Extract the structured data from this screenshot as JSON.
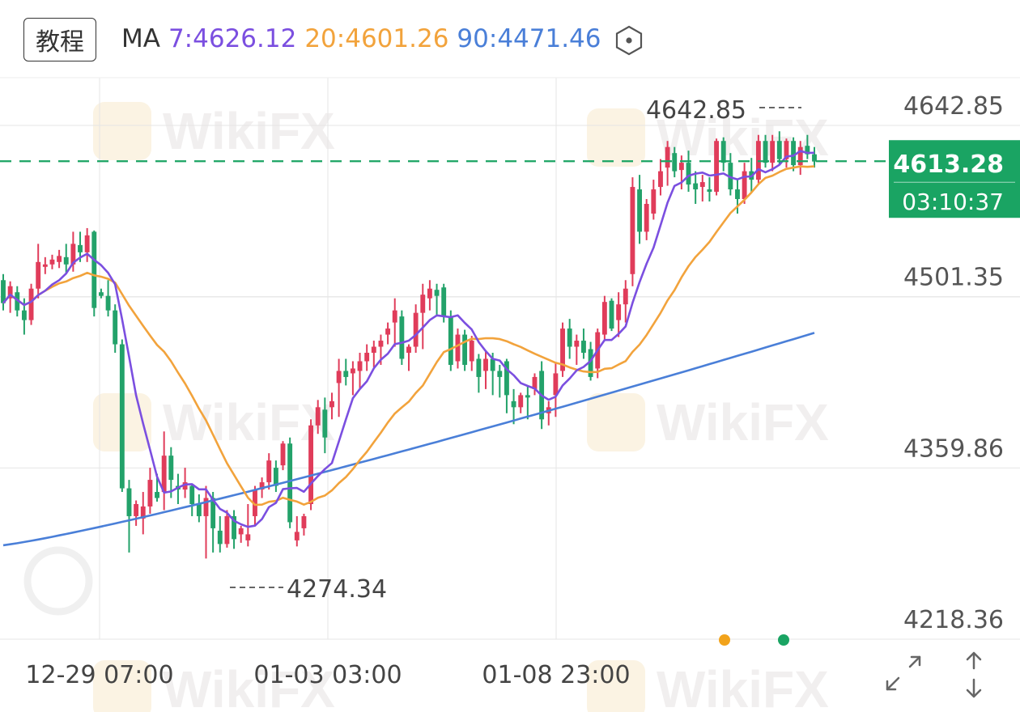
{
  "header": {
    "tutorial_label": "教程",
    "ma_label": "MA",
    "ma7": "7:4626.12",
    "ma20": "20:4601.26",
    "ma90": "90:4471.46",
    "settings_icon": "hexagon-dot-icon"
  },
  "chart_data": {
    "type": "candlestick",
    "y_axis_labels": [
      "4642.85",
      "4501.35",
      "4359.86",
      "4218.36"
    ],
    "y_ticks": [
      4642.85,
      4501.35,
      4359.86,
      4218.36
    ],
    "x_axis_labels": [
      "12-29 07:00",
      "01-03 03:00",
      "01-08 23:00"
    ],
    "current_price": "4613.28",
    "countdown": "03:10:37",
    "high_annotation": "4642.85",
    "low_annotation": "4274.34",
    "grid": true,
    "colors": {
      "up": "#e03c5a",
      "down": "#23a26a",
      "ma7": "#7b4fe0",
      "ma20": "#f2a33c",
      "ma90": "#4a7fd8",
      "current_price_bg": "#1aa463",
      "grid": "#e6e6e6"
    },
    "candles": [
      [
        4515,
        4520,
        4490,
        4496
      ],
      [
        4500,
        4514,
        4488,
        4510
      ],
      [
        4505,
        4510,
        4485,
        4490
      ],
      [
        4490,
        4500,
        4470,
        4482
      ],
      [
        4482,
        4512,
        4478,
        4508
      ],
      [
        4508,
        4545,
        4500,
        4530
      ],
      [
        4526,
        4534,
        4520,
        4528
      ],
      [
        4528,
        4536,
        4524,
        4532
      ],
      [
        4530,
        4540,
        4525,
        4535
      ],
      [
        4534,
        4545,
        4520,
        4528
      ],
      [
        4528,
        4555,
        4522,
        4545
      ],
      [
        4544,
        4555,
        4530,
        4538
      ],
      [
        4538,
        4558,
        4530,
        4552
      ],
      [
        4555,
        4556,
        4485,
        4492
      ],
      [
        4505,
        4508,
        4500,
        4502
      ],
      [
        4502,
        4515,
        4485,
        4490
      ],
      [
        4490,
        4495,
        4455,
        4462
      ],
      [
        4462,
        4466,
        4340,
        4343
      ],
      [
        4343,
        4350,
        4290,
        4320
      ],
      [
        4320,
        4333,
        4312,
        4330
      ],
      [
        4318,
        4340,
        4305,
        4328
      ],
      [
        4328,
        4360,
        4322,
        4350
      ],
      [
        4340,
        4355,
        4332,
        4335
      ],
      [
        4340,
        4390,
        4325,
        4370
      ],
      [
        4370,
        4377,
        4335,
        4350
      ],
      [
        4345,
        4355,
        4330,
        4342
      ],
      [
        4342,
        4360,
        4335,
        4348
      ],
      [
        4345,
        4347,
        4320,
        4330
      ],
      [
        4330,
        4338,
        4315,
        4320
      ],
      [
        4320,
        4345,
        4285,
        4335
      ],
      [
        4335,
        4340,
        4290,
        4310
      ],
      [
        4308,
        4320,
        4290,
        4297
      ],
      [
        4297,
        4325,
        4294,
        4320
      ],
      [
        4320,
        4325,
        4293,
        4301
      ],
      [
        4305,
        4312,
        4298,
        4310
      ],
      [
        4300,
        4330,
        4295,
        4305
      ],
      [
        4320,
        4345,
        4312,
        4342
      ],
      [
        4342,
        4352,
        4335,
        4348
      ],
      [
        4348,
        4372,
        4342,
        4366
      ],
      [
        4360,
        4366,
        4340,
        4345
      ],
      [
        4362,
        4382,
        4358,
        4380
      ],
      [
        4380,
        4385,
        4310,
        4315
      ],
      [
        4300,
        4320,
        4295,
        4307
      ],
      [
        4310,
        4322,
        4304,
        4320
      ],
      [
        4330,
        4400,
        4325,
        4395
      ],
      [
        4395,
        4416,
        4388,
        4410
      ],
      [
        4408,
        4418,
        4372,
        4385
      ],
      [
        4410,
        4422,
        4400,
        4415
      ],
      [
        4430,
        4450,
        4402,
        4440
      ],
      [
        4440,
        4450,
        4428,
        4435
      ],
      [
        4438,
        4448,
        4420,
        4442
      ],
      [
        4440,
        4455,
        4425,
        4448
      ],
      [
        4448,
        4462,
        4440,
        4455
      ],
      [
        4455,
        4465,
        4443,
        4460
      ],
      [
        4460,
        4470,
        4445,
        4465
      ],
      [
        4470,
        4480,
        4462,
        4475
      ],
      [
        4480,
        4500,
        4460,
        4490
      ],
      [
        4485,
        4490,
        4445,
        4450
      ],
      [
        4455,
        4462,
        4440,
        4460
      ],
      [
        4460,
        4495,
        4455,
        4488
      ],
      [
        4488,
        4512,
        4458,
        4503
      ],
      [
        4500,
        4515,
        4490,
        4508
      ],
      [
        4507,
        4512,
        4485,
        4502
      ],
      [
        4509,
        4512,
        4480,
        4485
      ],
      [
        4485,
        4490,
        4440,
        4445
      ],
      [
        4448,
        4475,
        4442,
        4470
      ],
      [
        4470,
        4474,
        4440,
        4445
      ],
      [
        4448,
        4469,
        4440,
        4465
      ],
      [
        4450,
        4454,
        4422,
        4435
      ],
      [
        4440,
        4456,
        4425,
        4450
      ],
      [
        4450,
        4455,
        4420,
        4440
      ],
      [
        4440,
        4445,
        4418,
        4435
      ],
      [
        4448,
        4450,
        4405,
        4420
      ],
      [
        4415,
        4425,
        4396,
        4410
      ],
      [
        4410,
        4422,
        4405,
        4420
      ],
      [
        4420,
        4428,
        4400,
        4418
      ],
      [
        4425,
        4438,
        4420,
        4435
      ],
      [
        4440,
        4448,
        4392,
        4400
      ],
      [
        4405,
        4415,
        4395,
        4410
      ],
      [
        4420,
        4447,
        4402,
        4438
      ],
      [
        4440,
        4480,
        4435,
        4475
      ],
      [
        4475,
        4483,
        4450,
        4460
      ],
      [
        4460,
        4470,
        4445,
        4465
      ],
      [
        4465,
        4475,
        4450,
        4455
      ],
      [
        4458,
        4464,
        4432,
        4435
      ],
      [
        4442,
        4475,
        4434,
        4472
      ],
      [
        4470,
        4502,
        4466,
        4497
      ],
      [
        4498,
        4500,
        4473,
        4475
      ],
      [
        4482,
        4505,
        4468,
        4495
      ],
      [
        4495,
        4515,
        4480,
        4508
      ],
      [
        4520,
        4600,
        4510,
        4592
      ],
      [
        4590,
        4602,
        4545,
        4555
      ],
      [
        4555,
        4582,
        4548,
        4578
      ],
      [
        4570,
        4598,
        4565,
        4590
      ],
      [
        4592,
        4615,
        4585,
        4605
      ],
      [
        4608,
        4630,
        4593,
        4625
      ],
      [
        4620,
        4625,
        4600,
        4605
      ],
      [
        4606,
        4618,
        4590,
        4612
      ],
      [
        4612,
        4622,
        4588,
        4594
      ],
      [
        4595,
        4605,
        4578,
        4590
      ],
      [
        4592,
        4602,
        4580,
        4596
      ],
      [
        4590,
        4600,
        4580,
        4588
      ],
      [
        4588,
        4632,
        4585,
        4630
      ],
      [
        4630,
        4633,
        4605,
        4612
      ],
      [
        4612,
        4620,
        4585,
        4590
      ],
      [
        4590,
        4598,
        4570,
        4582
      ],
      [
        4582,
        4612,
        4578,
        4605
      ],
      [
        4605,
        4616,
        4588,
        4598
      ],
      [
        4598,
        4635,
        4595,
        4630
      ],
      [
        4630,
        4635,
        4608,
        4612
      ],
      [
        4612,
        4635,
        4605,
        4630
      ],
      [
        4630,
        4638,
        4610,
        4615
      ],
      [
        4615,
        4632,
        4608,
        4630
      ],
      [
        4630,
        4633,
        4605,
        4610
      ],
      [
        4610,
        4630,
        4602,
        4625
      ],
      [
        4626,
        4635,
        4615,
        4619
      ],
      [
        4619,
        4625,
        4608,
        4613
      ]
    ]
  },
  "controls": {
    "expand_icon": "expand-diagonal-icon",
    "vertical_icon": "vertical-resize-icon"
  }
}
